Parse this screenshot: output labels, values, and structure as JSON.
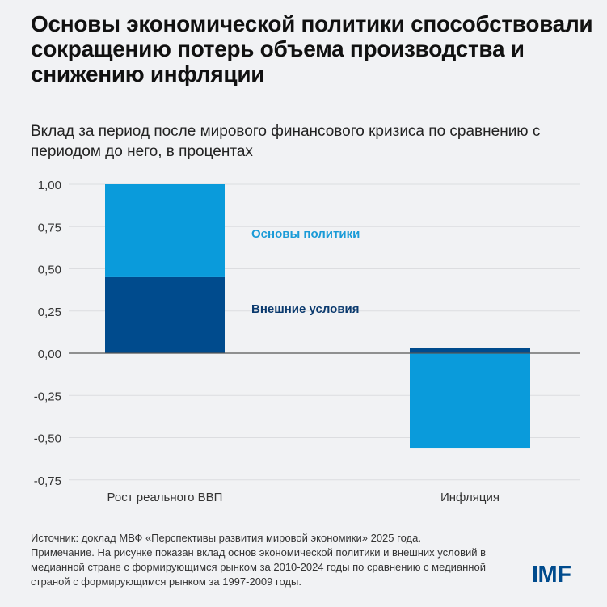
{
  "title": "Основы экономической политики способствовали сокращению потерь объема производства и снижению инфляции",
  "subtitle": "Вклад за период после мирового финансового кризиса по сравнению с периодом до него, в процентах",
  "chart_data": {
    "type": "bar",
    "stacked": true,
    "categories": [
      "Рост реального ВВП",
      "Инфляция"
    ],
    "series": [
      {
        "name": "Внешние условия",
        "values": [
          0.45,
          0.03
        ],
        "color": "#004b8d"
      },
      {
        "name": "Основы политики",
        "values": [
          0.55,
          -0.56
        ],
        "color": "#0a9bdb"
      }
    ],
    "ylim": [
      -0.75,
      1.0
    ],
    "yticks": [
      "1,00",
      "0,75",
      "0,50",
      "0,25",
      "0,00",
      "-0,25",
      "-0,50",
      "-0,75"
    ],
    "ytick_values": [
      1.0,
      0.75,
      0.5,
      0.25,
      0,
      -0.25,
      -0.5,
      -0.75
    ],
    "grid": true,
    "legend": "inline labels next to first bar"
  },
  "labels": {
    "policy": "Основы политики",
    "external": "Внешние условия",
    "policy_color": "#1a9bd7",
    "external_color": "#0b3a6e"
  },
  "footer": {
    "source": "Источник: доклад МВФ «Перспективы развития мировой экономики» 2025 года.",
    "note": "Примечание. На рисунке показан вклад основ экономической политики и внешних условий в медианной стране с формирующимся рынком за 2010-2024 годы по сравнению с медианной страной с формирующимся рынком за 1997-2009 годы.",
    "logo": "IMF"
  }
}
